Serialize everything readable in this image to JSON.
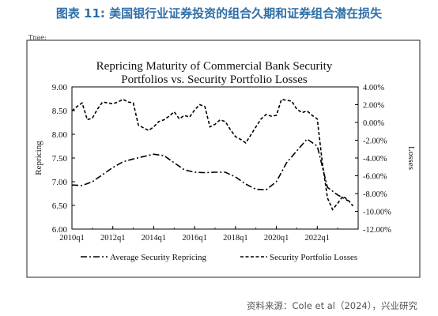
{
  "figure": {
    "heading": "图表 11: 美国银行业证券投资的组合久期和证券组合潜在损失",
    "top_fragment": "Tnae:",
    "source": "资料来源：Cole et al（2024），兴业研究"
  },
  "chart_data": {
    "type": "line",
    "title": "Repricing Maturity of Commercial Bank Security Portfolios  vs. Security Portfolio Losses",
    "title_lines": [
      "Repricing Maturity of Commercial Bank Security",
      "Portfolios  vs. Security Portfolio Losses"
    ],
    "xlabel": "",
    "ylabel_left": "Repricing",
    "ylabel_right": "Losses",
    "y_left": {
      "min": 6.0,
      "max": 9.0,
      "ticks": [
        "6.00",
        "6.50",
        "7.00",
        "7.50",
        "8.00",
        "8.50",
        "9.00"
      ]
    },
    "y_right": {
      "min": -12,
      "max": 4,
      "ticks": [
        "-12.00%",
        "-10.00%",
        "-8.00%",
        "-6.00%",
        "-4.00%",
        "-2.00%",
        "0.00%",
        "2.00%",
        "4.00%"
      ]
    },
    "x_ticks": [
      "2010q1",
      "2012q1",
      "2014q1",
      "2016q1",
      "2018q1",
      "2020q1",
      "2022q1"
    ],
    "grid": false,
    "legend_position": "bottom",
    "series": [
      {
        "name": "Average Security Repricing",
        "axis": "left",
        "style": "dash-dot",
        "x": [
          "2010q1",
          "2010q3",
          "2011q1",
          "2011q3",
          "2012q1",
          "2012q3",
          "2013q1",
          "2013q3",
          "2014q1",
          "2014q3",
          "2015q1",
          "2015q3",
          "2016q1",
          "2016q3",
          "2017q1",
          "2017q3",
          "2018q1",
          "2018q3",
          "2019q1",
          "2019q3",
          "2020q1",
          "2020q3",
          "2021q1",
          "2021q3",
          "2022q1",
          "2022q3",
          "2023q1",
          "2023q3"
        ],
        "values": [
          6.93,
          6.92,
          7.0,
          7.15,
          7.3,
          7.42,
          7.48,
          7.53,
          7.58,
          7.55,
          7.4,
          7.25,
          7.2,
          7.19,
          7.2,
          7.2,
          7.1,
          6.95,
          6.84,
          6.83,
          7.0,
          7.4,
          7.65,
          7.9,
          7.75,
          6.88,
          6.72,
          6.6
        ]
      },
      {
        "name": "Security Portfolio Losses",
        "axis": "right",
        "style": "dashed",
        "x": [
          "2010q1",
          "2010q2",
          "2010q3",
          "2010q4",
          "2011q1",
          "2011q2",
          "2011q3",
          "2011q4",
          "2012q1",
          "2012q2",
          "2012q3",
          "2012q4",
          "2013q1",
          "2013q2",
          "2013q3",
          "2013q4",
          "2014q1",
          "2014q2",
          "2014q3",
          "2014q4",
          "2015q1",
          "2015q2",
          "2015q3",
          "2015q4",
          "2016q1",
          "2016q2",
          "2016q3",
          "2016q4",
          "2017q1",
          "2017q2",
          "2017q3",
          "2017q4",
          "2018q1",
          "2018q2",
          "2018q3",
          "2018q4",
          "2019q1",
          "2019q2",
          "2019q3",
          "2019q4",
          "2020q1",
          "2020q2",
          "2020q3",
          "2020q4",
          "2021q1",
          "2021q2",
          "2021q3",
          "2021q4",
          "2022q1",
          "2022q2",
          "2022q3",
          "2022q4",
          "2023q1",
          "2023q2",
          "2023q3",
          "2023q4"
        ],
        "values": [
          1.3,
          1.8,
          2.2,
          0.3,
          0.5,
          1.5,
          2.3,
          2.2,
          2.1,
          2.3,
          2.6,
          2.3,
          2.2,
          -0.3,
          -0.6,
          -0.9,
          -0.5,
          0.1,
          0.3,
          0.7,
          1.2,
          0.4,
          0.8,
          0.6,
          1.4,
          2.0,
          1.8,
          -0.5,
          -0.2,
          0.3,
          0.1,
          -0.8,
          -1.6,
          -1.9,
          -2.3,
          -1.4,
          -0.5,
          0.4,
          0.9,
          0.7,
          0.8,
          2.6,
          2.5,
          2.4,
          1.5,
          1.1,
          1.3,
          0.8,
          0.4,
          -4.6,
          -8.5,
          -9.8,
          -9.1,
          -8.3,
          -8.7,
          -9.4
        ]
      }
    ]
  }
}
